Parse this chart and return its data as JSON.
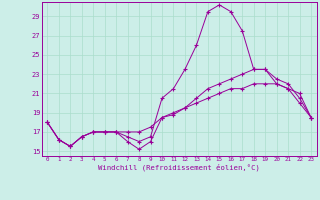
{
  "xlabel": "Windchill (Refroidissement éolien,°C)",
  "xlim": [
    -0.5,
    23.5
  ],
  "ylim": [
    14.5,
    30.5
  ],
  "xticks": [
    0,
    1,
    2,
    3,
    4,
    5,
    6,
    7,
    8,
    9,
    10,
    11,
    12,
    13,
    14,
    15,
    16,
    17,
    18,
    19,
    20,
    21,
    22,
    23
  ],
  "yticks": [
    15,
    17,
    19,
    21,
    23,
    25,
    27,
    29
  ],
  "bg_color": "#cceee8",
  "grid_color": "#aaddcc",
  "line_color": "#990099",
  "series": [
    [
      18.0,
      16.2,
      15.5,
      16.5,
      17.0,
      17.0,
      17.0,
      16.5,
      16.0,
      16.5,
      20.5,
      21.5,
      23.5,
      26.0,
      29.5,
      30.2,
      29.5,
      27.5,
      23.5,
      23.5,
      22.0,
      21.5,
      20.0,
      18.5
    ],
    [
      18.0,
      16.2,
      15.5,
      16.5,
      17.0,
      17.0,
      17.0,
      16.0,
      15.2,
      16.0,
      18.5,
      18.8,
      19.5,
      20.5,
      21.5,
      22.0,
      22.5,
      23.0,
      23.5,
      23.5,
      22.5,
      22.0,
      20.5,
      18.5
    ],
    [
      18.0,
      16.2,
      15.5,
      16.5,
      17.0,
      17.0,
      17.0,
      17.0,
      17.0,
      17.5,
      18.5,
      19.0,
      19.5,
      20.0,
      20.5,
      21.0,
      21.5,
      21.5,
      22.0,
      22.0,
      22.0,
      21.5,
      21.0,
      18.5
    ]
  ]
}
